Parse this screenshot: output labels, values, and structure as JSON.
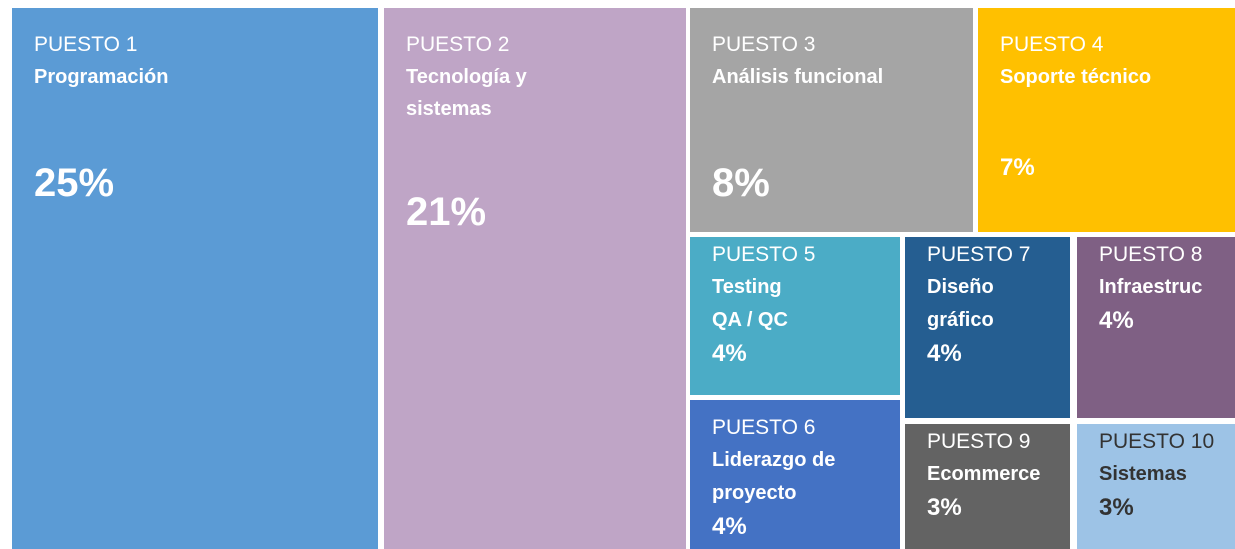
{
  "chart_data": {
    "type": "treemap",
    "categories": [
      "PUESTO 1",
      "PUESTO 2",
      "PUESTO 3",
      "PUESTO 4",
      "PUESTO 5",
      "PUESTO 6",
      "PUESTO 7",
      "PUESTO 8",
      "PUESTO 9",
      "PUESTO 10"
    ],
    "names": [
      "Programación",
      "Tecnología y\nsistemas",
      "Análisis funcional",
      "Soporte técnico",
      "Testing\nQA / QC",
      "Liderazgo de\nproyecto",
      "Diseño\ngráfico",
      "Infraestruc",
      "Ecommerce",
      "Sistemas"
    ],
    "values": [
      25,
      21,
      8,
      7,
      4,
      4,
      4,
      4,
      3,
      3
    ],
    "value_labels": [
      "25%",
      "21%",
      "8%",
      "7%",
      "4%",
      "4%",
      "4%",
      "4%",
      "3%",
      "3%"
    ],
    "colors": [
      "#5b9bd5",
      "#bfa5c6",
      "#a5a5a5",
      "#ffc000",
      "#4bacc6",
      "#4472c4",
      "#255e91",
      "#7f6084",
      "#636363",
      "#9dc3e6"
    ]
  }
}
